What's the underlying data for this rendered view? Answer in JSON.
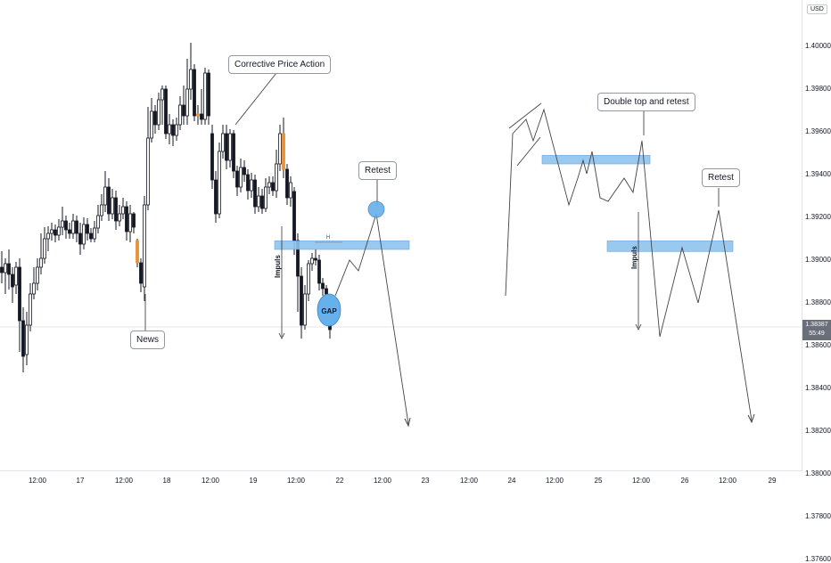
{
  "currency_label": "USD",
  "last_price": {
    "value": "1.38387",
    "countdown": "55:49"
  },
  "annotations": {
    "corrective": "Corrective Price Action",
    "news": "News",
    "retest_left": "Retest",
    "gap": "GAP",
    "h_marker": "H",
    "impuls_left": "Impuls",
    "double_top": "Double top and retest",
    "retest_right": "Retest",
    "impuls_right": "Impuls"
  },
  "chart_data": {
    "type": "candlestick",
    "y_axis": {
      "ticks": [
        "1.40000",
        "1.39800",
        "1.39600",
        "1.39400",
        "1.39200",
        "1.39000",
        "1.38800",
        "1.38600",
        "1.38400",
        "1.38200",
        "1.38000",
        "1.37800",
        "1.37600"
      ],
      "range": [
        1.3753,
        1.4035
      ]
    },
    "x_axis": {
      "ticks": [
        "12:00",
        "17",
        "12:00",
        "18",
        "12:00",
        "19",
        "12:00",
        "22",
        "12:00",
        "23",
        "12:00",
        "24",
        "12:00",
        "25",
        "12:00",
        "26",
        "12:00",
        "29"
      ]
    },
    "zones": [
      {
        "name": "retest-zone-left",
        "from": 1.3905,
        "to": 1.3909,
        "color": "#90c4ee"
      },
      {
        "name": "double-top-zone",
        "from": 1.3945,
        "to": 1.3949,
        "color": "#90c4ee"
      },
      {
        "name": "retest-zone-right",
        "from": 1.3904,
        "to": 1.3909,
        "color": "#90c4ee"
      }
    ],
    "colors": {
      "up": "#ffffff",
      "down": "#131722",
      "news_candle": "#e8903a",
      "zone": "#90c4ee"
    }
  }
}
